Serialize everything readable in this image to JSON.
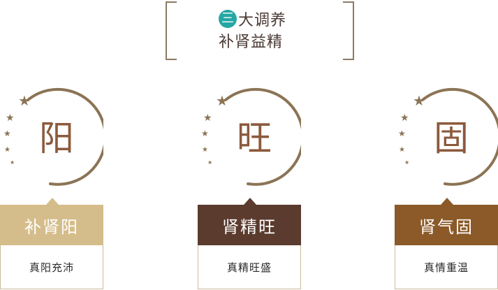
{
  "header": {
    "badge": "三",
    "line1": "大调养",
    "line2": "补肾益精"
  },
  "cards": [
    {
      "char": "阳",
      "label": "补肾阳",
      "sub": "真阳充沛",
      "color": "#d5bd8b"
    },
    {
      "char": "旺",
      "label": "肾精旺",
      "sub": "真精旺盛",
      "color": "#5a3b2e"
    },
    {
      "char": "固",
      "label": "肾气固",
      "sub": "真情重温",
      "color": "#8b5a28"
    }
  ],
  "colors": {
    "arc": "#8b7455",
    "text": "#4a3a34",
    "badge": "#25a7a4"
  }
}
